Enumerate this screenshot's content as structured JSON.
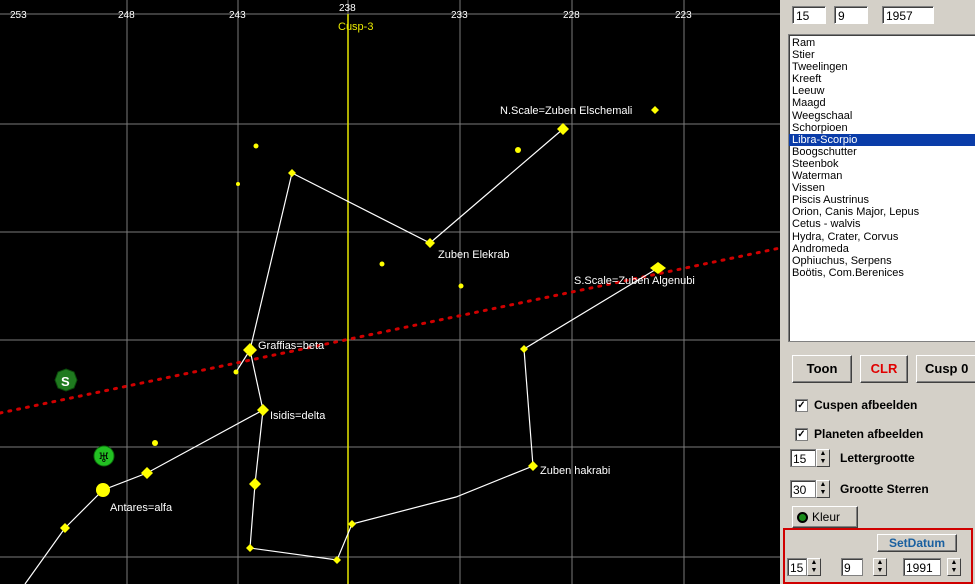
{
  "axis_ticks": [
    "253",
    "248",
    "243",
    "238",
    "233",
    "228",
    "223"
  ],
  "cusp_label": "Cusp-3",
  "star_labels": {
    "n_scale": "N.Scale=Zuben Elschemali",
    "zuben_elekrab": "Zuben Elekrab",
    "s_scale": "S.Scale=Zuben Algenubi",
    "graffias": "Graffias=beta",
    "isidis": "Isidis=delta",
    "zuben_hakrabi": "Zuben hakrabi",
    "antares": "Antares=alfa"
  },
  "planet_markers": {
    "s_marker": "S",
    "v_marker": "♅"
  },
  "top_date": {
    "day": "15",
    "month": "9",
    "year": "1957"
  },
  "constellations": [
    "Ram",
    "Stier",
    "Tweelingen",
    "Kreeft",
    "Leeuw",
    "Maagd",
    "Weegschaal",
    "Schorpioen",
    "Libra-Scorpio",
    "Boogschutter",
    "Steenbok",
    "Waterman",
    "Vissen",
    "Piscis Austrinus",
    "Orion, Canis Major, Lepus",
    "Cetus - walvis",
    "Hydra, Crater, Corvus",
    "Andromeda",
    "Ophiuchus, Serpens",
    "Boötis, Com.Berenices"
  ],
  "selected_constellation": "Libra-Scorpio",
  "buttons": {
    "toon": "Toon",
    "clr": "CLR",
    "cusp": "Cusp 0",
    "kleur": "Kleur",
    "setdatum": "SetDatum"
  },
  "checkboxes": {
    "cuspen": "Cuspen afbeelden",
    "planeten": "Planeten afbeelden"
  },
  "spinners": {
    "letter_value": "15",
    "letter_label": "Lettergrootte",
    "sterren_value": "30",
    "sterren_label": "Grootte Sterren"
  },
  "bottom_date": {
    "day": "15",
    "month": "9",
    "year": "1991"
  },
  "colors": {
    "grid": "#808080",
    "star": "#ffff00",
    "cusp": "#ffff00",
    "ecliptic": "#d00000",
    "clr_text": "#e00000",
    "planet": "#1a8a1a"
  }
}
